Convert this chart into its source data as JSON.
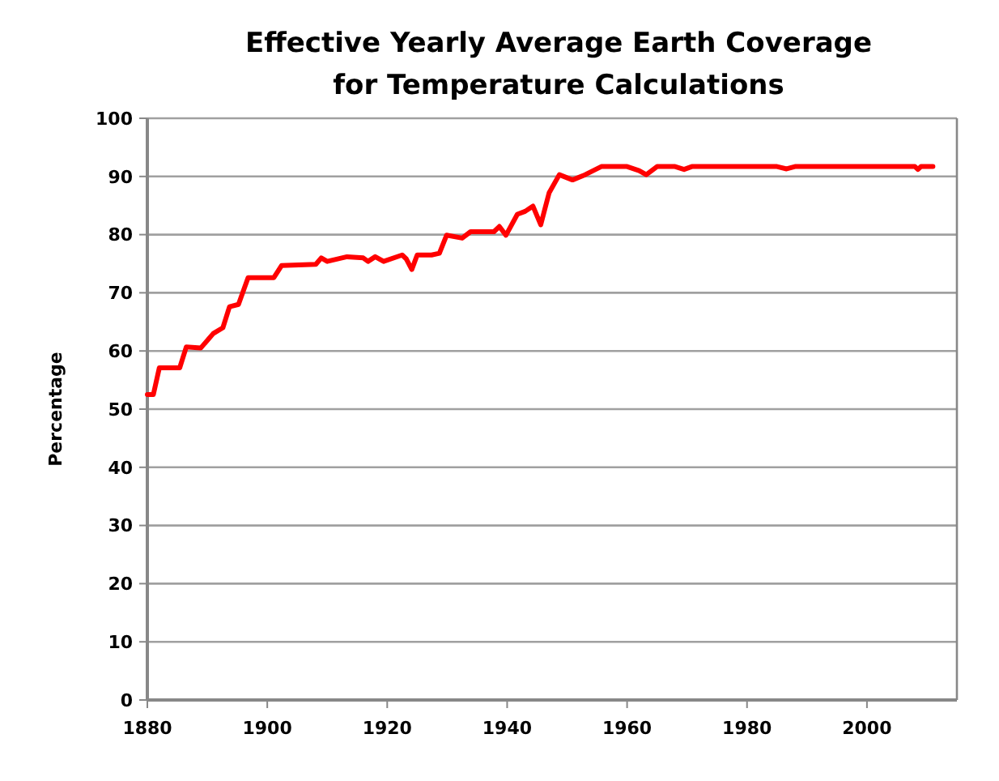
{
  "chart_data": {
    "type": "line",
    "title": "Effective Yearly Average Earth Coverage\nfor Temperature Calculations",
    "ylabel": "Percentage",
    "xlim": [
      1880,
      2015
    ],
    "xticks": [
      1880,
      1900,
      1920,
      1940,
      1960,
      1980,
      2000
    ],
    "ylim": [
      0,
      100
    ],
    "yticks": [
      0,
      10,
      20,
      30,
      40,
      50,
      60,
      70,
      80,
      90,
      100
    ],
    "grid": "y",
    "marker": "none",
    "line_style": "solid",
    "series": [
      {
        "color": "#ff0000",
        "x": [
          1880,
          1881,
          1882,
          1885.4,
          1886.5,
          1888.9,
          1891,
          1892.6,
          1893.7,
          1895.2,
          1896.8,
          1901.1,
          1902.4,
          1908.1,
          1909,
          1910,
          1913.3,
          1916,
          1916.8,
          1918,
          1919.4,
          1922.5,
          1923.2,
          1924.1,
          1925,
          1927.4,
          1928.7,
          1929.9,
          1932.5,
          1933.9,
          1937.8,
          1938.7,
          1939.8,
          1941.7,
          1943,
          1944.3,
          1945.6,
          1947,
          1948.7,
          1950.9,
          1953,
          1955.7,
          1960,
          1962,
          1963.2,
          1965,
          1968,
          1969.5,
          1970.8,
          1985,
          1986.6,
          1988,
          2008,
          2008.5,
          2009,
          2011
        ],
        "values": [
          52.5,
          52.5,
          57.1,
          57.1,
          60.7,
          60.5,
          63,
          64,
          67.6,
          68,
          72.6,
          72.6,
          74.7,
          74.9,
          76,
          75.4,
          76.2,
          76,
          75.4,
          76.2,
          75.4,
          76.5,
          75.8,
          74,
          76.5,
          76.5,
          76.8,
          79.9,
          79.4,
          80.5,
          80.5,
          81.4,
          79.9,
          83.5,
          84,
          84.9,
          81.7,
          87.2,
          90.3,
          89.4,
          90.3,
          91.7,
          91.7,
          91,
          90.3,
          91.7,
          91.7,
          91.2,
          91.7,
          91.7,
          91.3,
          91.7,
          91.7,
          91.2,
          91.7,
          91.7
        ]
      }
    ]
  }
}
